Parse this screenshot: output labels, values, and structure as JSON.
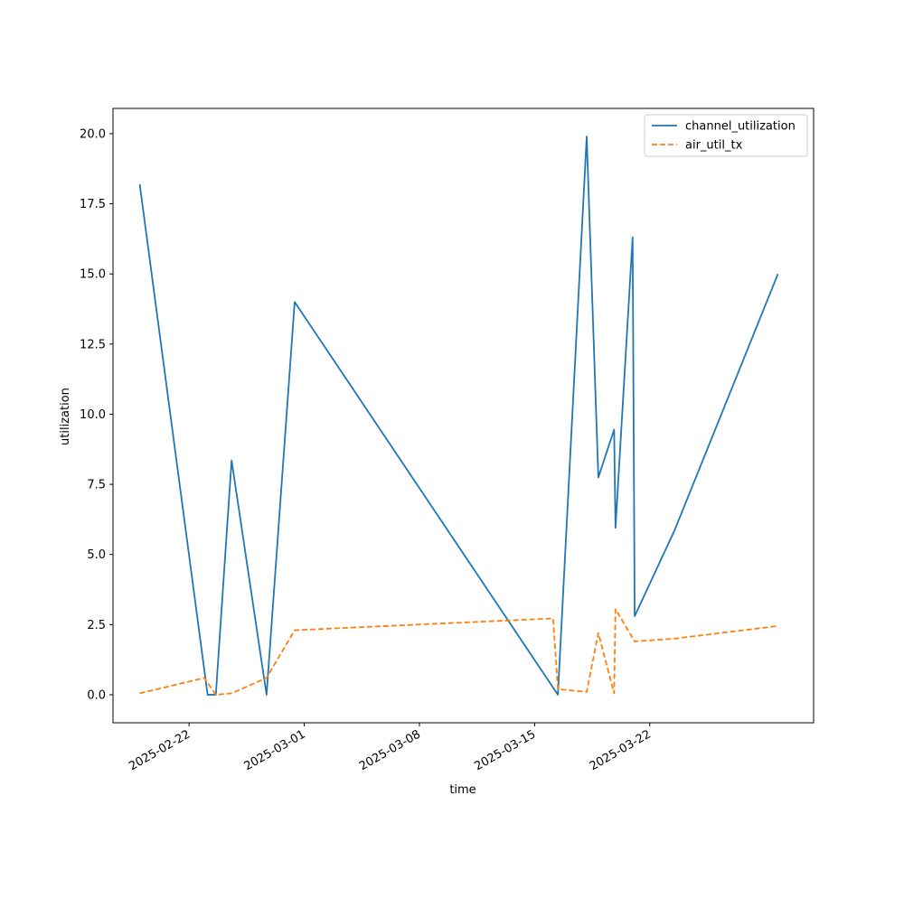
{
  "chart_data": {
    "type": "line",
    "title": "",
    "xlabel": "time",
    "ylabel": "utilization",
    "x_scale": "date",
    "xlim": [
      "2025-02-17T09:00",
      "2025-03-31T23:00"
    ],
    "ylim": [
      -1.0,
      20.9
    ],
    "grid": false,
    "legend_position": "top-right",
    "x_ticks": [
      {
        "value": "2025-02-22",
        "label": "2025-02-22"
      },
      {
        "value": "2025-03-01",
        "label": "2025-03-01"
      },
      {
        "value": "2025-03-08",
        "label": "2025-03-08"
      },
      {
        "value": "2025-03-15",
        "label": "2025-03-15"
      },
      {
        "value": "2025-03-22",
        "label": "2025-03-22"
      }
    ],
    "y_ticks": [
      {
        "value": 0.0,
        "label": "0.0"
      },
      {
        "value": 2.5,
        "label": "2.5"
      },
      {
        "value": 5.0,
        "label": "5.0"
      },
      {
        "value": 7.5,
        "label": "7.5"
      },
      {
        "value": 10.0,
        "label": "10.0"
      },
      {
        "value": 12.5,
        "label": "12.5"
      },
      {
        "value": 15.0,
        "label": "15.0"
      },
      {
        "value": 17.5,
        "label": "17.5"
      },
      {
        "value": 20.0,
        "label": "20.0"
      }
    ],
    "series": [
      {
        "name": "channel_utilization",
        "color": "#1f77b4",
        "style": "solid",
        "points": [
          {
            "x": "2025-02-19T00:00",
            "y": 18.2
          },
          {
            "x": "2025-02-23T03:00",
            "y": 0.0
          },
          {
            "x": "2025-02-23T15:00",
            "y": 0.0
          },
          {
            "x": "2025-02-24T14:00",
            "y": 8.35
          },
          {
            "x": "2025-02-26T17:00",
            "y": 0.0
          },
          {
            "x": "2025-02-28T10:00",
            "y": 14.0
          },
          {
            "x": "2025-03-16T10:00",
            "y": 0.0
          },
          {
            "x": "2025-03-18T04:00",
            "y": 19.9
          },
          {
            "x": "2025-03-18T21:00",
            "y": 7.75
          },
          {
            "x": "2025-03-19T20:00",
            "y": 9.45
          },
          {
            "x": "2025-03-19T22:00",
            "y": 5.95
          },
          {
            "x": "2025-03-20T23:00",
            "y": 16.3
          },
          {
            "x": "2025-03-21T02:00",
            "y": 2.8
          },
          {
            "x": "2025-03-23T12:00",
            "y": 5.85
          },
          {
            "x": "2025-03-29T19:00",
            "y": 15.0
          }
        ]
      },
      {
        "name": "air_util_tx",
        "color": "#ff7f0e",
        "style": "dashed",
        "points": [
          {
            "x": "2025-02-19T00:00",
            "y": 0.05
          },
          {
            "x": "2025-02-22T22:00",
            "y": 0.6
          },
          {
            "x": "2025-02-23T15:00",
            "y": 0.0
          },
          {
            "x": "2025-02-24T14:00",
            "y": 0.05
          },
          {
            "x": "2025-02-26T17:00",
            "y": 0.6
          },
          {
            "x": "2025-02-28T10:00",
            "y": 2.3
          },
          {
            "x": "2025-03-16T03:00",
            "y": 2.72
          },
          {
            "x": "2025-03-16T10:00",
            "y": 0.2
          },
          {
            "x": "2025-03-18T04:00",
            "y": 0.1
          },
          {
            "x": "2025-03-18T21:00",
            "y": 2.2
          },
          {
            "x": "2025-03-19T20:00",
            "y": 0.05
          },
          {
            "x": "2025-03-19T22:00",
            "y": 3.05
          },
          {
            "x": "2025-03-21T02:00",
            "y": 1.9
          },
          {
            "x": "2025-03-23T12:00",
            "y": 2.0
          },
          {
            "x": "2025-03-29T19:00",
            "y": 2.45
          }
        ]
      }
    ]
  }
}
